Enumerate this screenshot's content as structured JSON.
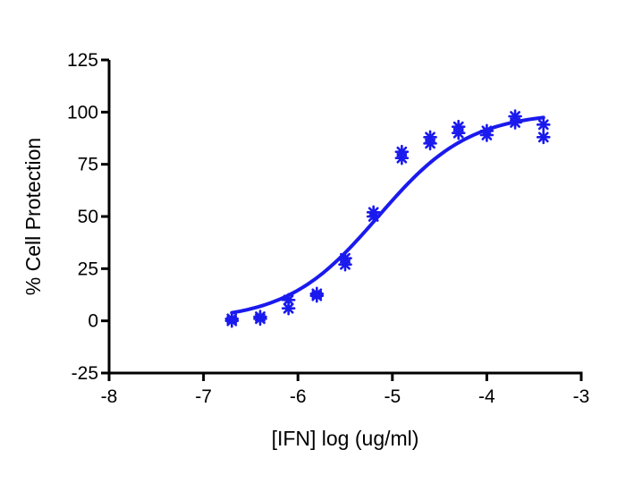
{
  "chart_data": {
    "type": "scatter",
    "title": "",
    "xlabel": "[IFN] log (ug/ml)",
    "ylabel": "% Cell Protection",
    "xlim": [
      -8,
      -3
    ],
    "ylim": [
      -25,
      125
    ],
    "xticks": [
      "-8",
      "-7",
      "-6",
      "-5",
      "-4",
      "-3"
    ],
    "yticks": [
      "-25",
      "0",
      "25",
      "50",
      "75",
      "100",
      "125"
    ],
    "grid": false,
    "legend": "none",
    "series": [
      {
        "points": [
          {
            "x": -6.7,
            "y": 1
          },
          {
            "x": -6.7,
            "y": 0
          },
          {
            "x": -6.4,
            "y": 2
          },
          {
            "x": -6.4,
            "y": 1
          },
          {
            "x": -6.1,
            "y": 10
          },
          {
            "x": -6.1,
            "y": 6
          },
          {
            "x": -5.8,
            "y": 13
          },
          {
            "x": -5.8,
            "y": 12
          },
          {
            "x": -5.5,
            "y": 30
          },
          {
            "x": -5.5,
            "y": 27
          },
          {
            "x": -5.2,
            "y": 52
          },
          {
            "x": -5.2,
            "y": 50
          },
          {
            "x": -4.9,
            "y": 81
          },
          {
            "x": -4.9,
            "y": 78
          },
          {
            "x": -4.6,
            "y": 88
          },
          {
            "x": -4.6,
            "y": 85
          },
          {
            "x": -4.3,
            "y": 93
          },
          {
            "x": -4.3,
            "y": 90
          },
          {
            "x": -4.0,
            "y": 91
          },
          {
            "x": -4.0,
            "y": 89
          },
          {
            "x": -3.7,
            "y": 98
          },
          {
            "x": -3.7,
            "y": 95
          },
          {
            "x": -3.4,
            "y": 94
          },
          {
            "x": -3.4,
            "y": 88
          }
        ]
      }
    ],
    "fit": {
      "type": "sigmoidal",
      "bottom": 0,
      "top": 100,
      "logEC50": -5.15,
      "hill": 0.9,
      "x_range": [
        -6.7,
        -3.4
      ]
    },
    "color": "#1a1aee",
    "axis_color": "#000000"
  }
}
